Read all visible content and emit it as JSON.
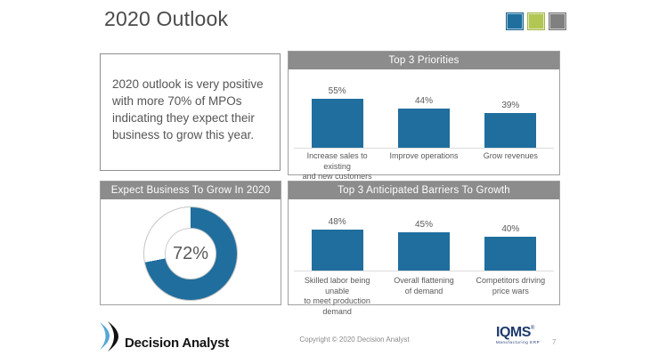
{
  "slide": {
    "title": "2020 Outlook",
    "page_number": "7"
  },
  "colors": {
    "bar_blue": "#1f6e9e",
    "accent_green": "#b2c753",
    "accent_gray": "#808080",
    "header_gray": "#8c8c8c"
  },
  "summary_box": {
    "text": "2020 outlook is very positive\nwith more 70% of MPOs\nindicating they expect their\nbusiness to grow this year."
  },
  "chart_data": [
    {
      "type": "bar",
      "title": "Top 3 Priorities",
      "categories": [
        "Increase sales to existing\nand new customers",
        "Improve operations",
        "Grow revenues"
      ],
      "values": [
        55,
        44,
        39
      ],
      "value_labels": [
        "55%",
        "44%",
        "39%"
      ],
      "unit": "%",
      "ylim": [
        0,
        60
      ],
      "grid": false,
      "bar_color": "#1f6e9e"
    },
    {
      "type": "donut",
      "title": "Expect Business To Grow In 2020",
      "value": 72,
      "center_label": "72%",
      "segments": [
        {
          "label": "Expect business to grow",
          "value": 72,
          "color": "#1f6e9e"
        },
        {
          "label": "Remainder",
          "value": 28,
          "color": "#ffffff"
        }
      ]
    },
    {
      "type": "bar",
      "title": "Top 3 Anticipated Barriers To Growth",
      "categories": [
        "Skilled labor being unable\nto meet production\ndemand",
        "Overall flattening\nof demand",
        "Competitors driving\nprice wars"
      ],
      "values": [
        48,
        45,
        40
      ],
      "value_labels": [
        "48%",
        "45%",
        "40%"
      ],
      "unit": "%",
      "ylim": [
        0,
        60
      ],
      "grid": false,
      "bar_color": "#1f6e9e"
    }
  ],
  "footer": {
    "logo_text": "Decision Analyst",
    "copyright": "Copyright © 2020 Decision Analyst",
    "brand": "IQMS",
    "brand_reg": "®",
    "brand_sub": "Manufacturing ERP"
  }
}
